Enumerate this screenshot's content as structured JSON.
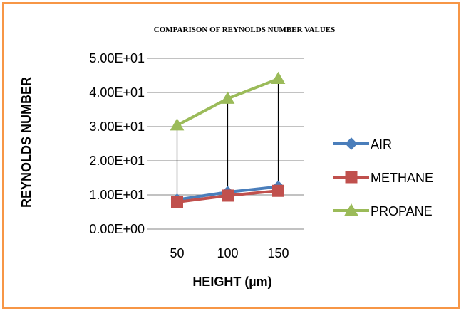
{
  "chart_data": {
    "type": "line",
    "title": "COMPARISON OF REYNOLDS NUMBER VALUES",
    "xlabel": "HEIGHT (µm)",
    "ylabel": "REYNOLDS NUMBER",
    "categories": [
      "50",
      "100",
      "150"
    ],
    "ylim": [
      0,
      50
    ],
    "yticks": [
      0,
      10,
      20,
      30,
      40,
      50
    ],
    "ytick_labels": [
      "0.00E+00",
      "1.00E+01",
      "2.00E+01",
      "3.00E+01",
      "4.00E+01",
      "5.00E+01"
    ],
    "grid": true,
    "legend_position": "right",
    "drop_lines": true,
    "series": [
      {
        "name": "AIR",
        "values": [
          8.6,
          10.8,
          12.4
        ],
        "color": "#4a7ebb",
        "marker": "diamond"
      },
      {
        "name": "METHANE",
        "values": [
          7.9,
          9.8,
          11.2
        ],
        "color": "#c0504d",
        "marker": "square"
      },
      {
        "name": "PROPANE",
        "values": [
          30.4,
          38.2,
          44.0
        ],
        "color": "#9bbb59",
        "marker": "triangle"
      }
    ]
  }
}
